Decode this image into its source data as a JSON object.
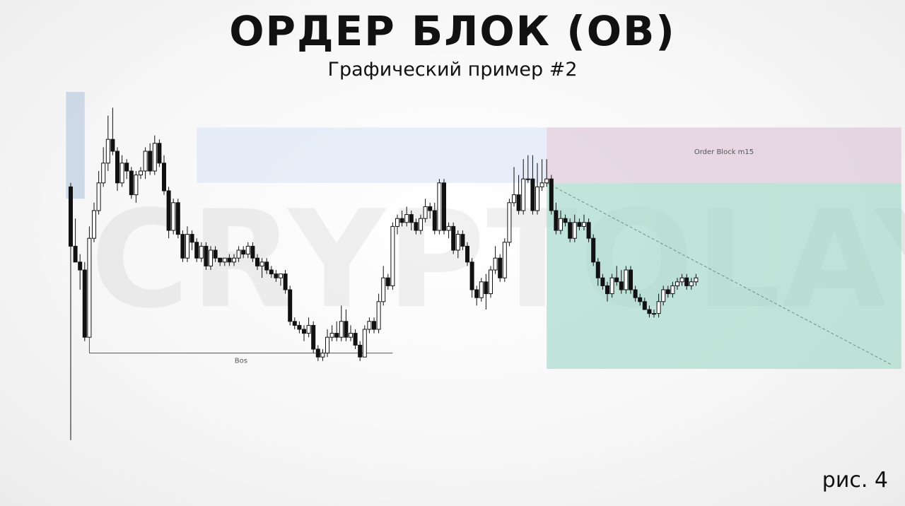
{
  "header": {
    "title": "ОРДЕР БЛОК (OB)",
    "subtitle": "Графический пример #2"
  },
  "footer": {
    "figure_label": "рис. 4"
  },
  "watermark": "CRYPTOLAYVA",
  "chart_data": {
    "type": "candlestick",
    "title": "ОРДЕР БЛОК (OB)",
    "subtitle": "Графический пример #2",
    "xlabel": "",
    "ylabel": "",
    "ylim": [
      0,
      100
    ],
    "grid": false,
    "annotations": [
      {
        "kind": "zone",
        "label": "",
        "from_index": -1,
        "to_index": 3,
        "y_low": 73,
        "y_high": 100,
        "color": "#b8cadf"
      },
      {
        "kind": "zone",
        "label": "",
        "from_index": 27,
        "to_index": 102,
        "y_low": 77,
        "y_high": 91,
        "color": "#dbe7f7"
      },
      {
        "kind": "zone",
        "label": "Order Block m15",
        "from_index": 102,
        "to_index": 178,
        "y_low": 77,
        "y_high": 91,
        "color": "#dcc4d6"
      },
      {
        "kind": "zone",
        "label": "",
        "from_index": 102,
        "to_index": 178,
        "y_low": 30,
        "y_high": 77,
        "color": "#a2d8c8"
      },
      {
        "kind": "line",
        "label": "Bos",
        "from_index": 4,
        "to_index": 69,
        "y": 34
      },
      {
        "kind": "dashed_line",
        "label": "",
        "from_index": 102,
        "to_index": 176,
        "y_from": 77,
        "y_to": 31
      }
    ],
    "candles": [
      [
        76,
        61,
        77,
        12
      ],
      [
        61,
        57,
        68,
        57
      ],
      [
        57,
        55,
        59,
        50
      ],
      [
        55,
        38,
        57,
        37
      ],
      [
        38,
        63,
        66,
        38
      ],
      [
        63,
        70,
        72,
        62
      ],
      [
        70,
        77,
        80,
        69
      ],
      [
        77,
        82,
        86,
        76
      ],
      [
        82,
        88,
        94,
        80
      ],
      [
        88,
        85,
        96,
        84
      ],
      [
        85,
        77,
        86,
        75
      ],
      [
        77,
        82,
        84,
        76
      ],
      [
        82,
        80,
        83,
        78
      ],
      [
        80,
        74,
        81,
        73
      ],
      [
        74,
        79,
        80,
        72
      ],
      [
        79,
        80,
        81,
        78
      ],
      [
        80,
        85,
        86,
        78
      ],
      [
        85,
        80,
        87,
        79
      ],
      [
        80,
        87,
        89,
        79
      ],
      [
        87,
        82,
        88,
        81
      ],
      [
        82,
        75,
        84,
        74
      ],
      [
        75,
        65,
        76,
        63
      ],
      [
        65,
        72,
        73,
        64
      ],
      [
        72,
        64,
        73,
        63
      ],
      [
        64,
        58,
        65,
        57
      ],
      [
        58,
        64,
        66,
        57
      ],
      [
        64,
        62,
        65,
        60
      ],
      [
        62,
        58,
        63,
        57
      ],
      [
        58,
        61,
        62,
        57
      ],
      [
        61,
        56,
        62,
        55
      ],
      [
        56,
        60,
        61,
        55
      ],
      [
        60,
        58,
        61,
        57
      ],
      [
        58,
        57,
        58,
        56
      ],
      [
        57,
        58,
        58,
        56
      ],
      [
        58,
        57,
        59,
        56
      ],
      [
        57,
        58,
        59,
        56
      ],
      [
        58,
        60,
        61,
        57
      ],
      [
        60,
        59,
        61,
        58
      ],
      [
        59,
        61,
        62,
        58
      ],
      [
        61,
        58,
        62,
        57
      ],
      [
        58,
        56,
        59,
        55
      ],
      [
        56,
        57,
        58,
        53
      ],
      [
        57,
        55,
        58,
        54
      ],
      [
        55,
        54,
        56,
        53
      ],
      [
        54,
        53,
        55,
        52
      ],
      [
        53,
        54,
        54,
        51
      ],
      [
        54,
        50,
        55,
        49
      ],
      [
        50,
        42,
        51,
        41
      ],
      [
        42,
        41,
        43,
        40
      ],
      [
        41,
        40,
        42,
        39
      ],
      [
        40,
        39,
        41,
        37
      ],
      [
        39,
        41,
        43,
        38
      ],
      [
        41,
        35,
        42,
        34
      ],
      [
        35,
        33,
        36,
        32
      ],
      [
        33,
        34,
        35,
        32
      ],
      [
        34,
        38,
        40,
        33
      ],
      [
        38,
        39,
        41,
        37
      ],
      [
        39,
        38,
        42,
        37
      ],
      [
        38,
        42,
        46,
        37
      ],
      [
        42,
        38,
        45,
        37
      ],
      [
        38,
        39,
        41,
        37
      ],
      [
        39,
        36,
        40,
        35
      ],
      [
        36,
        33,
        37,
        32
      ],
      [
        33,
        40,
        41,
        33
      ],
      [
        40,
        42,
        43,
        39
      ],
      [
        42,
        40,
        43,
        39
      ],
      [
        40,
        47,
        49,
        39
      ],
      [
        47,
        53,
        56,
        46
      ],
      [
        53,
        51,
        54,
        50
      ],
      [
        51,
        66,
        67,
        50
      ],
      [
        66,
        68,
        69,
        64
      ],
      [
        68,
        67,
        70,
        66
      ],
      [
        67,
        69,
        71,
        66
      ],
      [
        69,
        67,
        70,
        65
      ],
      [
        67,
        65,
        68,
        64
      ],
      [
        65,
        68,
        69,
        64
      ],
      [
        68,
        71,
        73,
        67
      ],
      [
        71,
        70,
        72,
        68
      ],
      [
        70,
        65,
        72,
        64
      ],
      [
        65,
        77,
        78,
        64
      ],
      [
        77,
        65,
        78,
        64
      ],
      [
        65,
        66,
        67,
        63
      ],
      [
        66,
        60,
        67,
        59
      ],
      [
        60,
        64,
        65,
        58
      ],
      [
        64,
        61,
        65,
        60
      ],
      [
        61,
        57,
        62,
        56
      ],
      [
        57,
        50,
        58,
        48
      ],
      [
        50,
        48,
        51,
        46
      ],
      [
        48,
        52,
        53,
        47
      ],
      [
        52,
        49,
        54,
        45
      ],
      [
        49,
        55,
        56,
        48
      ],
      [
        55,
        58,
        61,
        54
      ],
      [
        58,
        53,
        59,
        52
      ],
      [
        53,
        62,
        63,
        52
      ],
      [
        62,
        72,
        73,
        61
      ],
      [
        72,
        74,
        81,
        71
      ],
      [
        74,
        70,
        79,
        69
      ],
      [
        70,
        78,
        83,
        69
      ],
      [
        78,
        78,
        84,
        77
      ],
      [
        78,
        70,
        84,
        69
      ],
      [
        70,
        76,
        82,
        69
      ],
      [
        76,
        77,
        83,
        75
      ],
      [
        77,
        78,
        83,
        76
      ],
      [
        78,
        70,
        79,
        69
      ],
      [
        70,
        65,
        72,
        64
      ],
      [
        65,
        68,
        70,
        64
      ],
      [
        68,
        67,
        69,
        66
      ],
      [
        67,
        63,
        68,
        62
      ],
      [
        63,
        67,
        69,
        62
      ],
      [
        67,
        66,
        68,
        65
      ],
      [
        66,
        67,
        69,
        65
      ],
      [
        67,
        63,
        68,
        62
      ],
      [
        63,
        57,
        64,
        56
      ],
      [
        57,
        53,
        58,
        51
      ],
      [
        53,
        51,
        54,
        50
      ],
      [
        51,
        49,
        52,
        47
      ],
      [
        49,
        53,
        54,
        48
      ],
      [
        53,
        52,
        56,
        51
      ],
      [
        52,
        50,
        55,
        49
      ],
      [
        50,
        55,
        56,
        49
      ],
      [
        55,
        50,
        56,
        49
      ],
      [
        50,
        48,
        51,
        47
      ],
      [
        48,
        47,
        49,
        46
      ],
      [
        47,
        45,
        48,
        45
      ],
      [
        45,
        44,
        46,
        43
      ],
      [
        44,
        44,
        45,
        43
      ],
      [
        44,
        47,
        49,
        43
      ],
      [
        47,
        50,
        51,
        46
      ],
      [
        50,
        49,
        51,
        48
      ],
      [
        49,
        51,
        52,
        48
      ],
      [
        51,
        52,
        53,
        50
      ],
      [
        52,
        53,
        54,
        51
      ],
      [
        53,
        51,
        54,
        50
      ],
      [
        51,
        52,
        53,
        50
      ],
      [
        52,
        53,
        54,
        51
      ]
    ]
  }
}
